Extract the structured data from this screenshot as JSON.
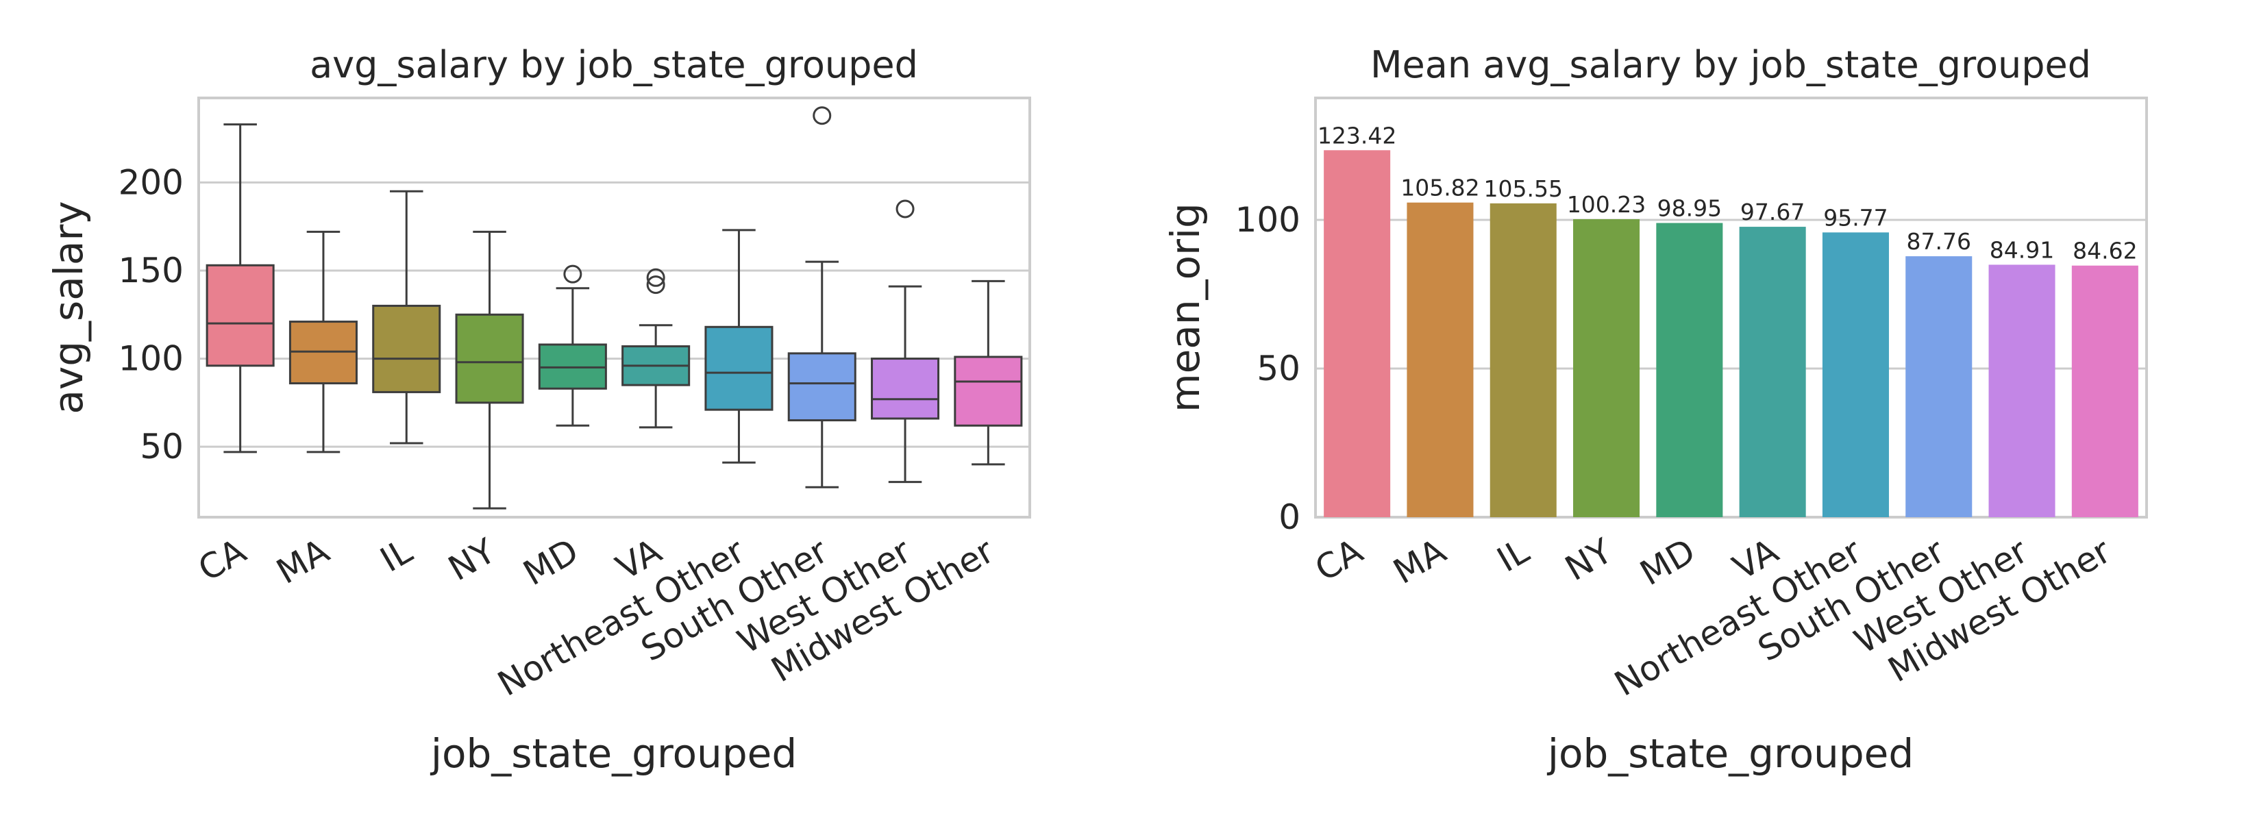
{
  "chart_data": [
    {
      "type": "box",
      "title": "avg_salary by job_state_grouped",
      "xlabel": "job_state_grouped",
      "ylabel": "avg_salary",
      "categories": [
        "CA",
        "MA",
        "IL",
        "NY",
        "MD",
        "VA",
        "Northeast Other",
        "South Other",
        "West Other",
        "Midwest Other"
      ],
      "colors": [
        "#e8808f",
        "#c98945",
        "#a09142",
        "#74a043",
        "#3fa378",
        "#42a39c",
        "#45a3be",
        "#7aa1e8",
        "#c386e6",
        "#e37bc6"
      ],
      "boxes": [
        {
          "whisker_low": 47,
          "q1": 96,
          "median": 120,
          "q3": 153,
          "whisker_high": 233,
          "outliers": []
        },
        {
          "whisker_low": 47,
          "q1": 86,
          "median": 104,
          "q3": 121,
          "whisker_high": 172,
          "outliers": []
        },
        {
          "whisker_low": 52,
          "q1": 81,
          "median": 100,
          "q3": 130,
          "whisker_high": 195,
          "outliers": []
        },
        {
          "whisker_low": 15,
          "q1": 75,
          "median": 98,
          "q3": 125,
          "whisker_high": 172,
          "outliers": []
        },
        {
          "whisker_low": 62,
          "q1": 83,
          "median": 95,
          "q3": 108,
          "whisker_high": 140,
          "outliers": [
            148
          ]
        },
        {
          "whisker_low": 61,
          "q1": 85,
          "median": 96,
          "q3": 107,
          "whisker_high": 119,
          "outliers": [
            142,
            146
          ]
        },
        {
          "whisker_low": 41,
          "q1": 71,
          "median": 92,
          "q3": 118,
          "whisker_high": 173,
          "outliers": []
        },
        {
          "whisker_low": 27,
          "q1": 65,
          "median": 86,
          "q3": 103,
          "whisker_high": 155,
          "outliers": [
            238
          ]
        },
        {
          "whisker_low": 30,
          "q1": 66,
          "median": 77,
          "q3": 100,
          "whisker_high": 141,
          "outliers": [
            185
          ]
        },
        {
          "whisker_low": 40,
          "q1": 62,
          "median": 87,
          "q3": 101,
          "whisker_high": 144,
          "outliers": []
        }
      ],
      "yticks": [
        50,
        100,
        150,
        200
      ],
      "ylim": [
        10,
        248
      ],
      "grid": true
    },
    {
      "type": "bar",
      "title": "Mean avg_salary by job_state_grouped",
      "xlabel": "job_state_grouped",
      "ylabel": "mean_orig",
      "categories": [
        "CA",
        "MA",
        "IL",
        "NY",
        "MD",
        "VA",
        "Northeast Other",
        "South Other",
        "West Other",
        "Midwest Other"
      ],
      "values": [
        123.42,
        105.82,
        105.55,
        100.23,
        98.95,
        97.67,
        95.77,
        87.76,
        84.91,
        84.62
      ],
      "value_labels": [
        "123.42",
        "105.82",
        "105.55",
        "100.23",
        "98.95",
        "97.67",
        "95.77",
        "87.76",
        "84.91",
        "84.62"
      ],
      "colors": [
        "#e8808f",
        "#c98945",
        "#a09142",
        "#74a043",
        "#3fa378",
        "#42a39c",
        "#45a3be",
        "#7aa1e8",
        "#c386e6",
        "#e37bc6"
      ],
      "yticks": [
        0,
        50,
        100
      ],
      "ylim": [
        0,
        141
      ],
      "grid": true
    }
  ]
}
